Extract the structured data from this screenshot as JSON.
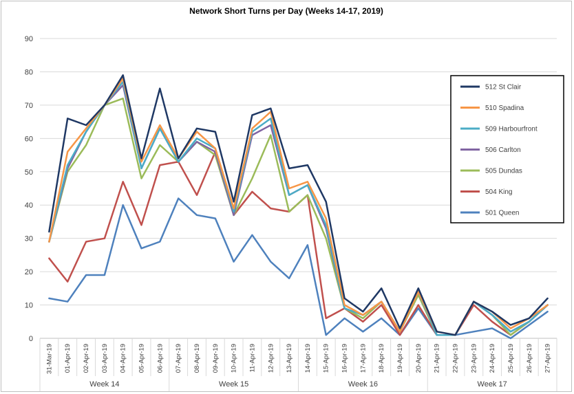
{
  "chart_data": {
    "type": "line",
    "title": "Network Short Turns per Day (Weeks 14-17, 2019)",
    "xlabel": "",
    "ylabel": "",
    "ylim": [
      0,
      90
    ],
    "yticks": [
      0,
      10,
      20,
      30,
      40,
      50,
      60,
      70,
      80,
      90
    ],
    "grid": "horizontal",
    "legend_position": "right",
    "categories": [
      "31-Mar-19",
      "01-Apr-19",
      "02-Apr-19",
      "03-Apr-19",
      "04-Apr-19",
      "05-Apr-19",
      "06-Apr-19",
      "07-Apr-19",
      "08-Apr-19",
      "09-Apr-19",
      "10-Apr-19",
      "11-Apr-19",
      "12-Apr-19",
      "13-Apr-19",
      "14-Apr-19",
      "15-Apr-19",
      "16-Apr-19",
      "17-Apr-19",
      "18-Apr-19",
      "19-Apr-19",
      "20-Apr-19",
      "21-Apr-19",
      "22-Apr-19",
      "23-Apr-19",
      "24-Apr-19",
      "25-Apr-19",
      "26-Apr-19",
      "27-Apr-19"
    ],
    "groups": [
      {
        "label": "Week 14",
        "start": 0,
        "end": 6
      },
      {
        "label": "Week 15",
        "start": 7,
        "end": 13
      },
      {
        "label": "Week 16",
        "start": 14,
        "end": 20
      },
      {
        "label": "Week 17",
        "start": 21,
        "end": 27
      }
    ],
    "series": [
      {
        "name": "501 Queen",
        "color": "#4e81bd",
        "values": [
          12,
          11,
          19,
          19,
          40,
          27,
          29,
          42,
          37,
          36,
          23,
          31,
          23,
          18,
          28,
          1,
          6,
          2,
          6,
          1,
          9,
          1,
          1,
          2,
          3,
          0,
          4,
          8
        ]
      },
      {
        "name": "504 King",
        "color": "#c0504d",
        "values": [
          24,
          17,
          29,
          30,
          47,
          34,
          52,
          53,
          43,
          56,
          37,
          44,
          39,
          38,
          43,
          6,
          9,
          5,
          10,
          1,
          10,
          1,
          1,
          10,
          5,
          1,
          5,
          10
        ]
      },
      {
        "name": "505 Dundas",
        "color": "#9bbb59",
        "values": [
          29,
          50,
          58,
          70,
          72,
          48,
          58,
          53,
          59,
          55,
          37,
          48,
          61,
          38,
          43,
          30,
          9,
          6,
          11,
          2,
          13,
          1,
          1,
          11,
          7,
          1,
          5,
          10
        ]
      },
      {
        "name": "506 Carlton",
        "color": "#8064a2",
        "values": [
          29,
          51,
          62,
          70,
          76,
          51,
          63,
          53,
          59,
          56,
          37,
          61,
          64,
          43,
          46,
          33,
          9,
          7,
          11,
          2,
          14,
          1,
          1,
          11,
          7,
          2,
          5,
          10
        ]
      },
      {
        "name": "509 Harbourfront",
        "color": "#4bacc6",
        "values": [
          29,
          52,
          62,
          70,
          77,
          51,
          63,
          53,
          60,
          57,
          38,
          62,
          66,
          43,
          46,
          34,
          9,
          7,
          11,
          2,
          14,
          1,
          1,
          11,
          7,
          2,
          5,
          10
        ]
      },
      {
        "name": "510 Spadina",
        "color": "#f79646",
        "values": [
          29,
          56,
          63,
          70,
          78,
          53,
          64,
          54,
          62,
          57,
          39,
          63,
          68,
          45,
          47,
          36,
          10,
          7,
          11,
          2,
          14,
          2,
          1,
          11,
          8,
          3,
          6,
          10
        ]
      },
      {
        "name": "512 St Clair",
        "color": "#1f3864",
        "values": [
          32,
          66,
          64,
          70,
          79,
          54,
          75,
          54,
          63,
          62,
          41,
          67,
          69,
          51,
          52,
          41,
          12,
          8,
          15,
          3,
          15,
          2,
          1,
          11,
          8,
          4,
          6,
          12
        ]
      }
    ]
  }
}
